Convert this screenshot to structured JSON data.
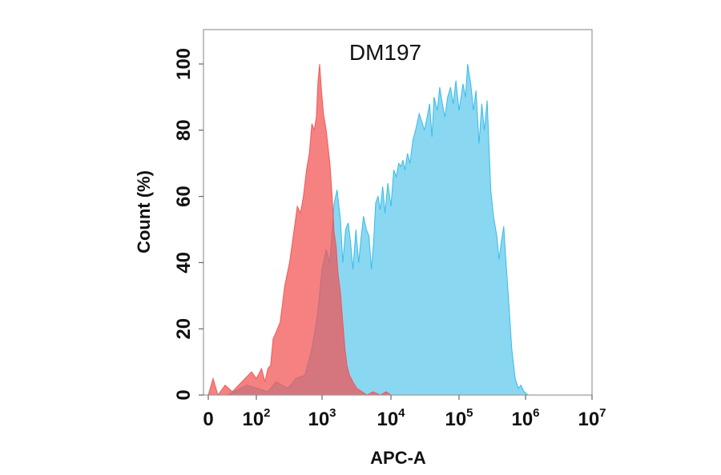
{
  "chart_data": {
    "type": "area",
    "title": "DM197",
    "xlabel": "APC-A",
    "ylabel": "Count  (%)",
    "x_scale": "biexponential",
    "x_ticks": [
      {
        "value": 0,
        "base": "0",
        "exp": ""
      },
      {
        "value": 100,
        "base": "10",
        "exp": "2"
      },
      {
        "value": 1000,
        "base": "10",
        "exp": "3"
      },
      {
        "value": 10000,
        "base": "10",
        "exp": "4"
      },
      {
        "value": 100000,
        "base": "10",
        "exp": "5"
      },
      {
        "value": 1000000,
        "base": "10",
        "exp": "6"
      },
      {
        "value": 10000000,
        "base": "10",
        "exp": "7"
      }
    ],
    "y_ticks": [
      "0",
      "20",
      "40",
      "60",
      "80",
      "100"
    ],
    "ylim": [
      0,
      110
    ],
    "grid": false,
    "series": [
      {
        "color": "#29B6E8",
        "fill_opacity": 0.55,
        "points": [
          [
            0,
            0
          ],
          [
            40,
            0
          ],
          [
            80,
            3
          ],
          [
            150,
            1
          ],
          [
            200,
            4
          ],
          [
            300,
            2
          ],
          [
            400,
            5
          ],
          [
            550,
            6
          ],
          [
            700,
            14
          ],
          [
            850,
            24
          ],
          [
            1000,
            38
          ],
          [
            1150,
            44
          ],
          [
            1300,
            40
          ],
          [
            1500,
            58
          ],
          [
            1650,
            62
          ],
          [
            1850,
            53
          ],
          [
            2000,
            40
          ],
          [
            2200,
            50
          ],
          [
            2400,
            52
          ],
          [
            2600,
            46
          ],
          [
            2800,
            38
          ],
          [
            3100,
            50
          ],
          [
            3400,
            40
          ],
          [
            3700,
            48
          ],
          [
            4000,
            54
          ],
          [
            4400,
            50
          ],
          [
            4800,
            48
          ],
          [
            5200,
            38
          ],
          [
            5600,
            46
          ],
          [
            6000,
            58
          ],
          [
            6500,
            60
          ],
          [
            7000,
            56
          ],
          [
            7600,
            63
          ],
          [
            8200,
            55
          ],
          [
            9000,
            64
          ],
          [
            10000,
            57
          ],
          [
            11000,
            68
          ],
          [
            12000,
            66
          ],
          [
            13000,
            70
          ],
          [
            14000,
            69
          ],
          [
            15000,
            71
          ],
          [
            16000,
            68
          ],
          [
            17500,
            73
          ],
          [
            19000,
            70
          ],
          [
            21000,
            77
          ],
          [
            23000,
            80
          ],
          [
            26000,
            85
          ],
          [
            28000,
            83
          ],
          [
            31000,
            80
          ],
          [
            34000,
            84
          ],
          [
            37000,
            88
          ],
          [
            40000,
            78
          ],
          [
            43000,
            90
          ],
          [
            48000,
            86
          ],
          [
            52000,
            93
          ],
          [
            57000,
            88
          ],
          [
            62000,
            84
          ],
          [
            68000,
            90
          ],
          [
            75000,
            93
          ],
          [
            82000,
            88
          ],
          [
            90000,
            95
          ],
          [
            100000,
            86
          ],
          [
            115000,
            94
          ],
          [
            125000,
            90
          ],
          [
            135000,
            100
          ],
          [
            150000,
            94
          ],
          [
            165000,
            86
          ],
          [
            180000,
            92
          ],
          [
            200000,
            76
          ],
          [
            220000,
            88
          ],
          [
            240000,
            80
          ],
          [
            265000,
            89
          ],
          [
            300000,
            62
          ],
          [
            330000,
            54
          ],
          [
            370000,
            48
          ],
          [
            400000,
            41
          ],
          [
            430000,
            46
          ],
          [
            470000,
            51
          ],
          [
            510000,
            40
          ],
          [
            560000,
            28
          ],
          [
            620000,
            14
          ],
          [
            700000,
            5
          ],
          [
            780000,
            2
          ],
          [
            850000,
            3
          ],
          [
            950000,
            1
          ],
          [
            1100000,
            0
          ]
        ]
      },
      {
        "color": "#F25050",
        "fill_opacity": 0.72,
        "points": [
          [
            0,
            0
          ],
          [
            10,
            5
          ],
          [
            20,
            0
          ],
          [
            35,
            3
          ],
          [
            50,
            1
          ],
          [
            70,
            4
          ],
          [
            90,
            7
          ],
          [
            100,
            5
          ],
          [
            120,
            8
          ],
          [
            135,
            4
          ],
          [
            150,
            8
          ],
          [
            165,
            9
          ],
          [
            180,
            17
          ],
          [
            200,
            19
          ],
          [
            230,
            22
          ],
          [
            270,
            33
          ],
          [
            320,
            40
          ],
          [
            370,
            49
          ],
          [
            420,
            57
          ],
          [
            470,
            55
          ],
          [
            520,
            60
          ],
          [
            580,
            68
          ],
          [
            640,
            73
          ],
          [
            700,
            82
          ],
          [
            760,
            80
          ],
          [
            820,
            84
          ],
          [
            870,
            95
          ],
          [
            920,
            100
          ],
          [
            980,
            92
          ],
          [
            1050,
            85
          ],
          [
            1150,
            80
          ],
          [
            1300,
            70
          ],
          [
            1400,
            60
          ],
          [
            1500,
            49
          ],
          [
            1600,
            45
          ],
          [
            1700,
            37
          ],
          [
            1850,
            31
          ],
          [
            2000,
            22
          ],
          [
            2150,
            14
          ],
          [
            2300,
            9
          ],
          [
            2500,
            6
          ],
          [
            2800,
            4
          ],
          [
            3200,
            2
          ],
          [
            3800,
            1
          ],
          [
            4500,
            0
          ],
          [
            5500,
            1
          ],
          [
            7000,
            0
          ],
          [
            8500,
            1
          ],
          [
            10000,
            0
          ]
        ]
      }
    ]
  }
}
